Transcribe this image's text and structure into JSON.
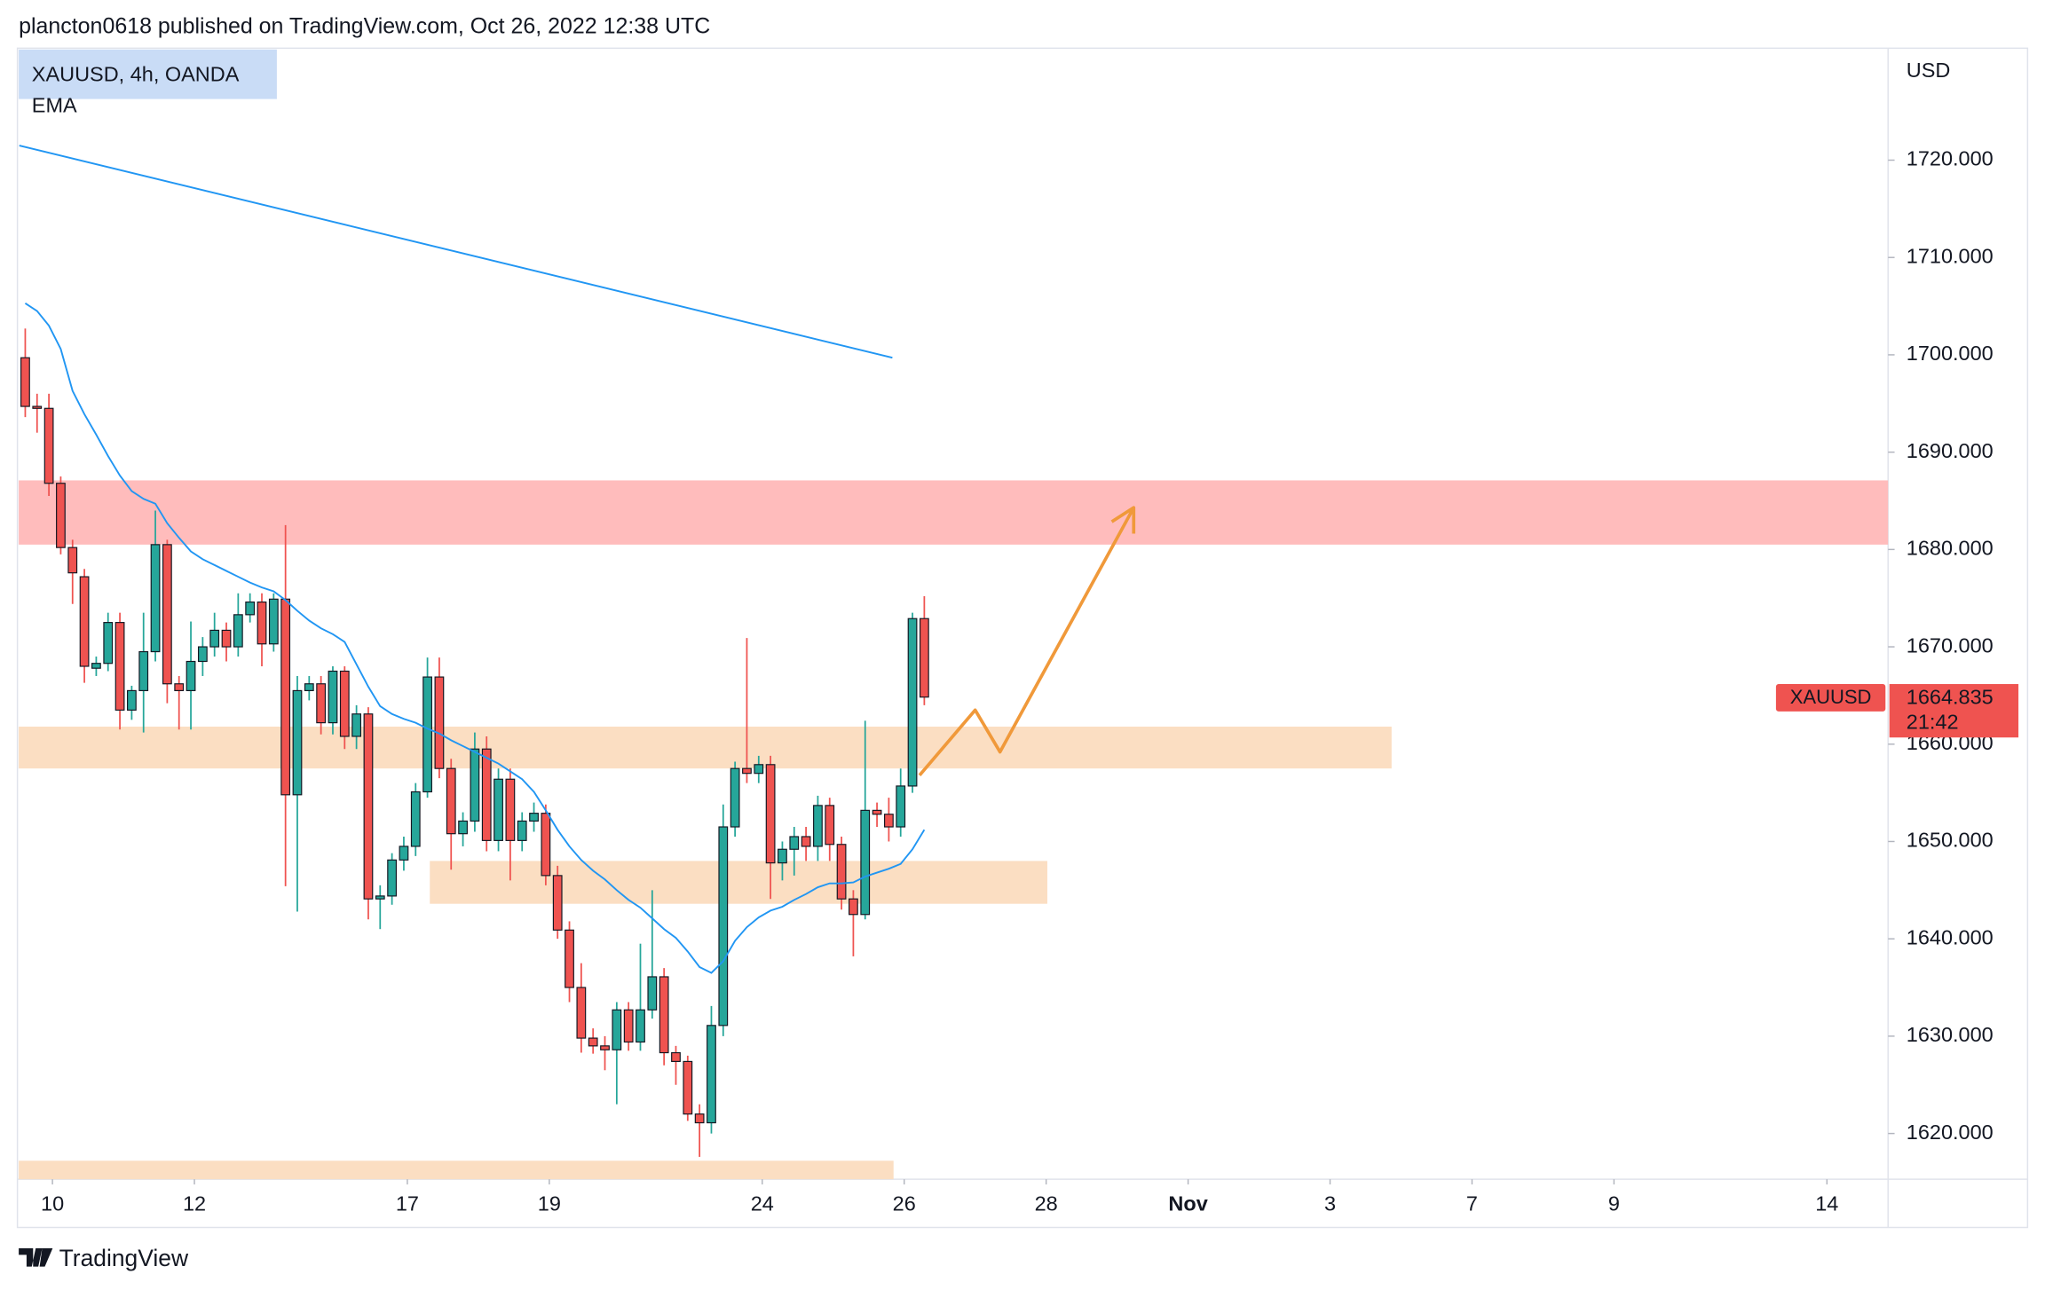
{
  "header": {
    "text": "plancton0618 published on TradingView.com, Oct 26, 2022 12:38 UTC"
  },
  "footer": {
    "brand": "TradingView"
  },
  "chart_data": {
    "type": "candlestick",
    "symbol_legend": "XAUUSD, 4h, OANDA",
    "indicator_legend": "EMA",
    "currency": "USD",
    "up_color": "#26a69a",
    "down_color": "#ef5350",
    "open": [
      1699.7,
      1694.7,
      1694.5,
      1686.8,
      1680.2,
      1677.2,
      1667.8,
      1668.3,
      1672.5,
      1663.5,
      1665.5,
      1669.5,
      1680.5,
      1666.2,
      1665.5,
      1668.5,
      1670.0,
      1671.7,
      1670.0,
      1673.3,
      1674.6,
      1670.3,
      1674.9,
      1654.8,
      1665.5,
      1666.2,
      1662.2,
      1667.5,
      1660.8,
      1663.1,
      1644.1,
      1644.4,
      1648.1,
      1649.5,
      1655.1,
      1666.9,
      1657.5,
      1650.8,
      1652.1,
      1659.5,
      1650.1,
      1656.4,
      1650.1,
      1652.1,
      1652.9,
      1646.5,
      1640.9,
      1635.0,
      1629.8,
      1629.0,
      1628.6,
      1632.7,
      1629.4,
      1632.7,
      1636.1,
      1628.3,
      1627.4,
      1622.0,
      1621.1,
      1631.1,
      1651.5,
      1657.5,
      1657.0,
      1657.9,
      1647.8,
      1649.2,
      1650.5,
      1649.5,
      1653.7,
      1649.7,
      1644.1,
      1642.5,
      1653.2,
      1652.8,
      1651.5,
      1655.7,
      1672.9
    ],
    "high": [
      1702.7,
      1696.0,
      1696.0,
      1687.5,
      1681.0,
      1678.0,
      1669.0,
      1673.5,
      1673.5,
      1666.0,
      1673.5,
      1684.0,
      1681.0,
      1667.0,
      1672.6,
      1671.0,
      1673.5,
      1672.5,
      1675.5,
      1675.5,
      1675.5,
      1675.5,
      1682.5,
      1667.0,
      1667.0,
      1667.0,
      1668.0,
      1668.0,
      1664.0,
      1663.8,
      1645.5,
      1648.8,
      1650.5,
      1656.0,
      1668.9,
      1668.9,
      1658.5,
      1653.0,
      1661.2,
      1660.8,
      1657.5,
      1657.5,
      1653.0,
      1654.0,
      1653.8,
      1647.5,
      1641.8,
      1637.5,
      1630.8,
      1630.0,
      1633.5,
      1633.5,
      1639.5,
      1645.0,
      1637.0,
      1629.0,
      1628.0,
      1623.0,
      1633.1,
      1653.8,
      1658.2,
      1670.9,
      1658.8,
      1658.8,
      1650.0,
      1651.5,
      1651.5,
      1654.7,
      1654.5,
      1650.5,
      1645.0,
      1662.4,
      1654.0,
      1654.5,
      1657.5,
      1673.5,
      1675.2
    ],
    "low": [
      1693.6,
      1692.0,
      1685.5,
      1679.5,
      1674.4,
      1666.3,
      1667.0,
      1667.5,
      1661.5,
      1662.5,
      1661.2,
      1668.5,
      1664.2,
      1661.5,
      1661.5,
      1667.0,
      1669.0,
      1668.5,
      1669.0,
      1672.5,
      1668.0,
      1669.5,
      1645.4,
      1642.8,
      1664.5,
      1661.0,
      1661.0,
      1659.5,
      1659.5,
      1642.0,
      1641.0,
      1643.5,
      1647.0,
      1648.5,
      1654.5,
      1656.5,
      1647.1,
      1649.5,
      1651.0,
      1649.0,
      1649.0,
      1646.0,
      1649.0,
      1651.0,
      1645.5,
      1640.0,
      1633.5,
      1628.3,
      1628.2,
      1626.5,
      1623.0,
      1628.5,
      1628.5,
      1631.8,
      1627.0,
      1625.0,
      1621.3,
      1617.6,
      1620.0,
      1630.0,
      1650.5,
      1656.0,
      1656.0,
      1644.1,
      1646.0,
      1646.5,
      1648.0,
      1648.0,
      1648.0,
      1643.0,
      1638.2,
      1642.0,
      1651.5,
      1650.0,
      1650.5,
      1655.0,
      1664.0
    ],
    "close": [
      1694.7,
      1694.5,
      1686.8,
      1680.2,
      1677.6,
      1668.0,
      1668.3,
      1672.5,
      1663.5,
      1665.5,
      1669.5,
      1680.5,
      1666.2,
      1665.5,
      1668.5,
      1670.0,
      1671.7,
      1670.0,
      1673.3,
      1674.6,
      1670.3,
      1674.9,
      1654.8,
      1665.5,
      1666.2,
      1662.2,
      1667.5,
      1660.8,
      1663.1,
      1644.1,
      1644.4,
      1648.1,
      1649.5,
      1655.1,
      1666.9,
      1657.5,
      1650.8,
      1652.1,
      1659.5,
      1650.1,
      1656.4,
      1650.1,
      1652.1,
      1652.9,
      1646.5,
      1640.9,
      1635.0,
      1629.8,
      1629.0,
      1628.6,
      1632.7,
      1629.4,
      1632.7,
      1636.1,
      1628.3,
      1627.4,
      1622.0,
      1621.1,
      1631.1,
      1651.5,
      1657.5,
      1657.0,
      1657.9,
      1647.8,
      1649.2,
      1650.5,
      1649.5,
      1653.7,
      1649.7,
      1644.1,
      1642.5,
      1653.2,
      1652.8,
      1651.5,
      1655.7,
      1672.9,
      1664.835
    ],
    "ema": [
      1705.3,
      1704.5,
      1703.0,
      1700.6,
      1696.3,
      1693.9,
      1691.8,
      1689.6,
      1687.6,
      1686.0,
      1685.2,
      1684.7,
      1682.7,
      1681.2,
      1679.8,
      1679.0,
      1678.4,
      1677.8,
      1677.2,
      1676.6,
      1676.1,
      1675.7,
      1674.8,
      1673.7,
      1672.7,
      1671.9,
      1671.3,
      1670.5,
      1668.2,
      1665.9,
      1663.9,
      1663.1,
      1662.6,
      1662.2,
      1661.6,
      1661.1,
      1660.4,
      1659.8,
      1659.2,
      1658.6,
      1658.0,
      1657.2,
      1656.4,
      1655.1,
      1653.2,
      1651.2,
      1649.5,
      1648.1,
      1647.0,
      1646.1,
      1645.0,
      1644.0,
      1643.2,
      1642.1,
      1641.0,
      1640.1,
      1638.7,
      1637.1,
      1636.5,
      1637.7,
      1639.8,
      1641.2,
      1642.2,
      1642.9,
      1643.3,
      1644.0,
      1644.6,
      1645.3,
      1645.7,
      1645.7,
      1645.8,
      1646.4,
      1646.8,
      1647.2,
      1647.7,
      1649.2,
      1651.2
    ],
    "ema_color": "#2196f3",
    "trendline": {
      "x": [
        -0.5,
        73.3
      ],
      "y": [
        1721.5,
        1699.7
      ],
      "color": "#2196f3"
    },
    "zones": [
      {
        "x0": -0.55,
        "x1": 157.47,
        "y0": 1680.5,
        "y1": 1687.1,
        "color": "#ffb8b8"
      },
      {
        "x0": -0.55,
        "x1": 115.5,
        "y0": 1657.5,
        "y1": 1661.8,
        "color": "#fbdcbf"
      },
      {
        "x0": 34.2,
        "x1": 86.4,
        "y0": 1643.6,
        "y1": 1648.0,
        "color": "#fbdcbf"
      },
      {
        "x0": -0.55,
        "x1": 73.4,
        "y0": 1615.3,
        "y1": 1617.2,
        "color": "#fbdcbf"
      }
    ],
    "projection": {
      "x": [
        75.6,
        80.3,
        82.4,
        93.7
      ],
      "y": [
        1656.8,
        1663.5,
        1659.2,
        1684.3
      ],
      "color": "#f0993a"
    },
    "price_tag": {
      "symbol": "XAUUSD",
      "price": "1664.835",
      "countdown": "21:42",
      "color": "#ef5350"
    },
    "xlim": [
      -0.55,
      157.47
    ],
    "xticks": [
      {
        "value": 2.3,
        "label": "10"
      },
      {
        "value": 14.3,
        "label": "12"
      },
      {
        "value": 32.3,
        "label": "17"
      },
      {
        "value": 44.3,
        "label": "19"
      },
      {
        "value": 62.3,
        "label": "24"
      },
      {
        "value": 74.3,
        "label": "26"
      },
      {
        "value": 86.3,
        "label": "28"
      },
      {
        "value": 98.3,
        "label": "Nov"
      },
      {
        "value": 110.3,
        "label": "3"
      },
      {
        "value": 122.3,
        "label": "7"
      },
      {
        "value": 134.3,
        "label": "9"
      },
      {
        "value": 152.3,
        "label": "14"
      }
    ],
    "ylim": [
      1615.3,
      1731.5
    ],
    "yticks": [
      {
        "value": 1620,
        "label": "1620.000"
      },
      {
        "value": 1630,
        "label": "1630.000"
      },
      {
        "value": 1640,
        "label": "1640.000"
      },
      {
        "value": 1650,
        "label": "1650.000"
      },
      {
        "value": 1660,
        "label": "1660.000"
      },
      {
        "value": 1670,
        "label": "1670.000"
      },
      {
        "value": 1680,
        "label": "1680.000"
      },
      {
        "value": 1690,
        "label": "1690.000"
      },
      {
        "value": 1700,
        "label": "1700.000"
      },
      {
        "value": 1710,
        "label": "1710.000"
      },
      {
        "value": 1720,
        "label": "1720.000"
      }
    ]
  }
}
